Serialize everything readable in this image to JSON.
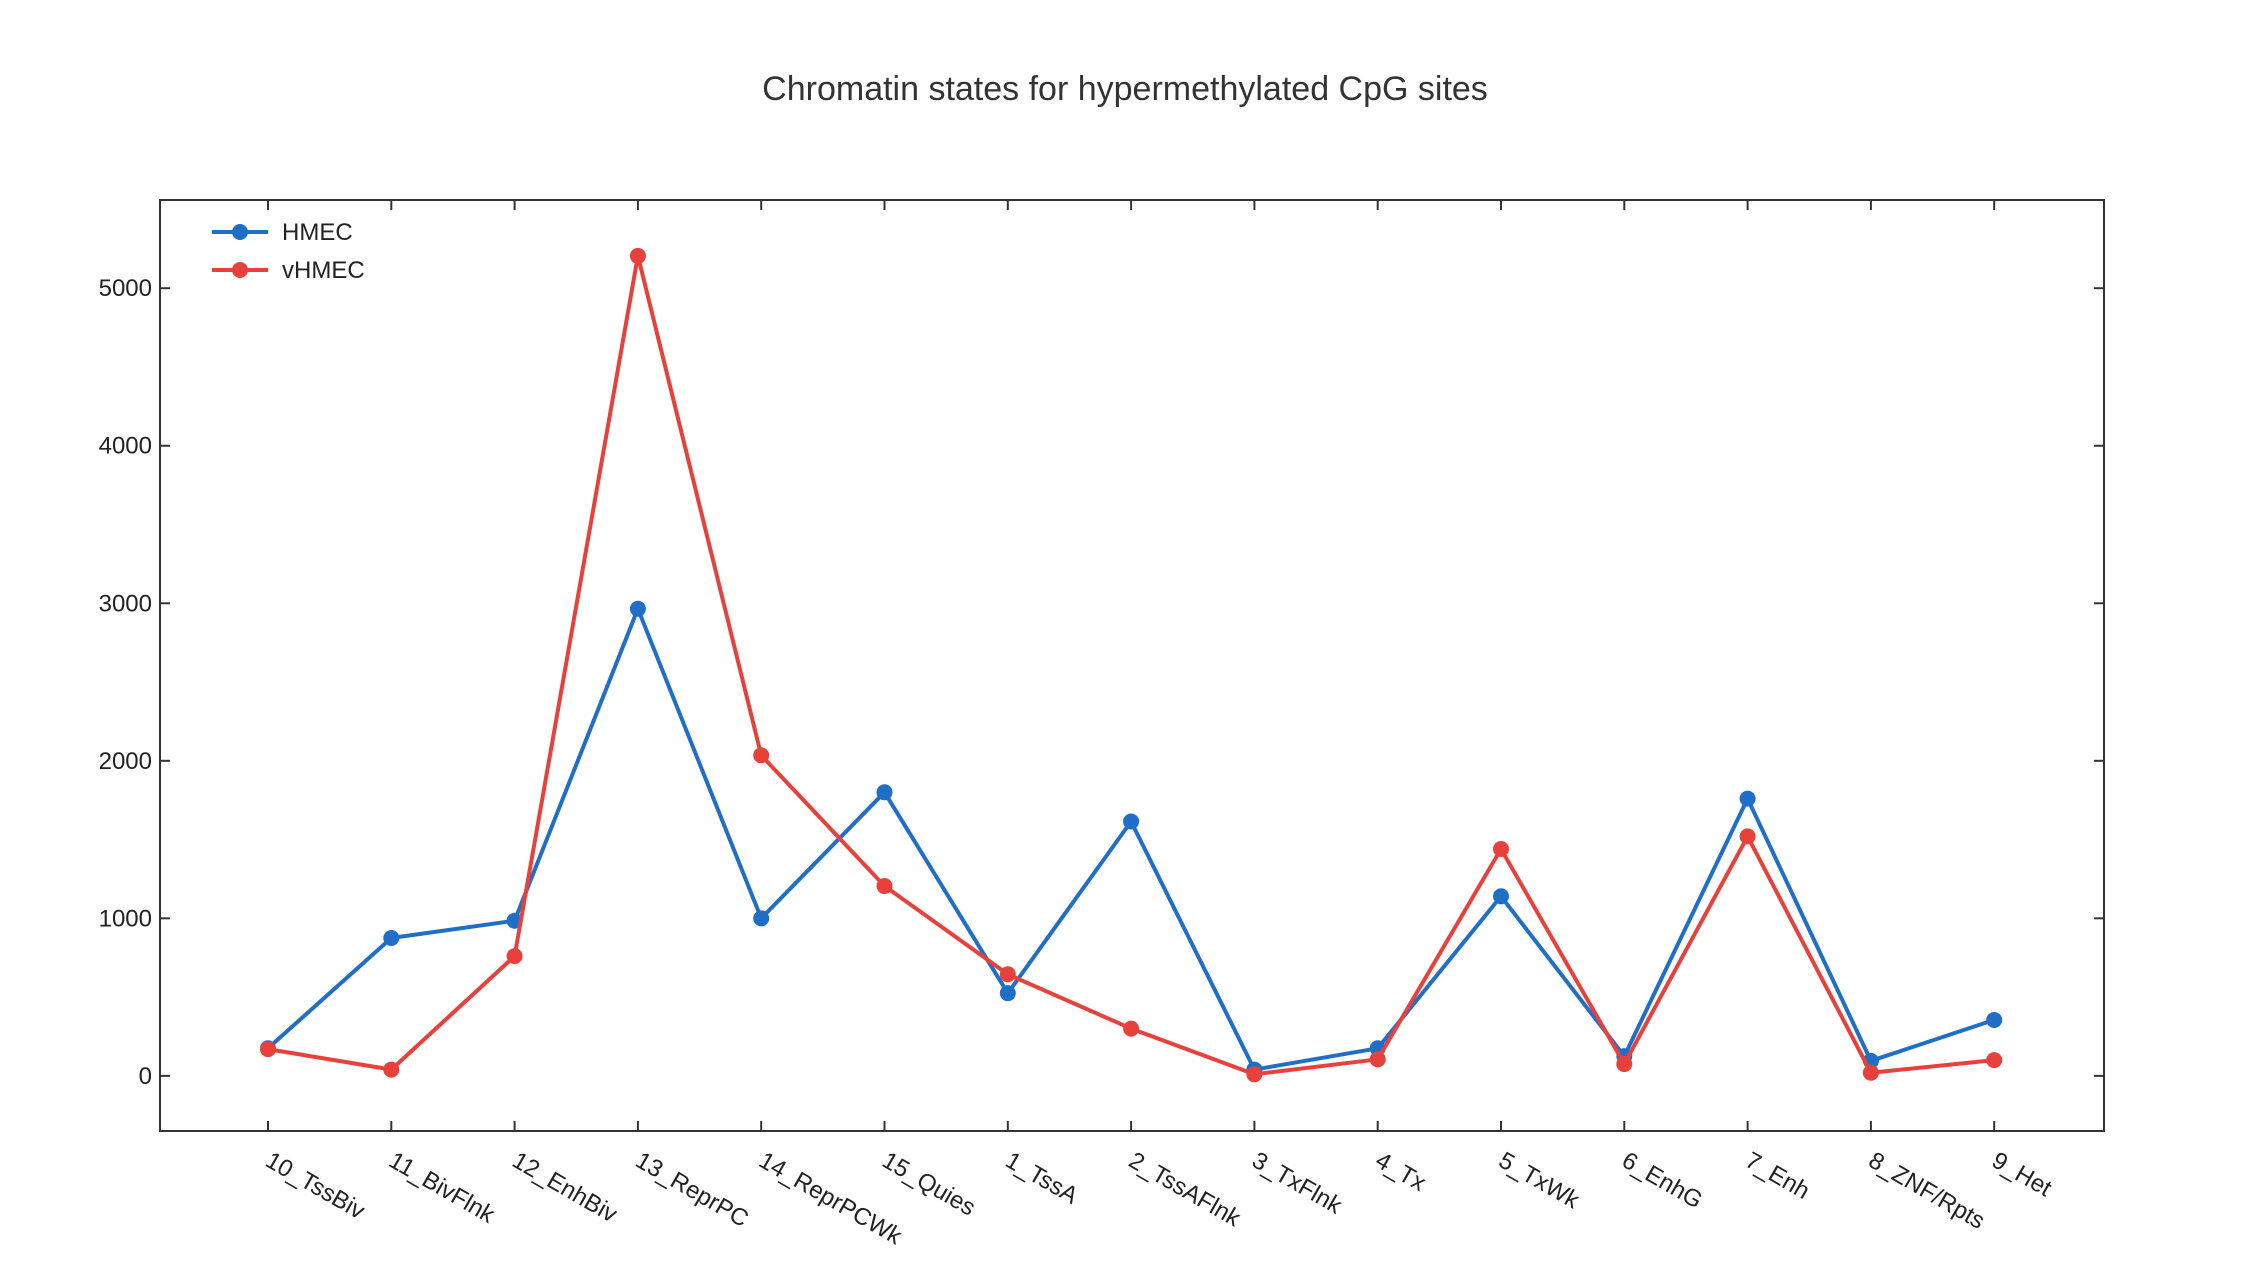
{
  "chart_data": {
    "type": "line",
    "title": "Chromatin states for hypermethylated CpG sites",
    "xlabel": "",
    "ylabel": "",
    "categories": [
      "10_TssBiv",
      "11_BivFlnk",
      "12_EnhBiv",
      "13_ReprPC",
      "14_ReprPCWk",
      "15_Quies",
      "1_TssA",
      "2_TssAFlnk",
      "3_TxFlnk",
      "4_Tx",
      "5_TxWk",
      "6_EnhG",
      "7_Enh",
      "8_ZNF/Rpts",
      "9_Het"
    ],
    "ylim": [
      -350,
      5560
    ],
    "yticks": [
      0,
      1000,
      2000,
      3000,
      4000,
      5000
    ],
    "grid": false,
    "legend": "top-left",
    "series": [
      {
        "name": "HMEC",
        "color": "#1f6fc9",
        "values": [
          175,
          875,
          985,
          2965,
          1000,
          1800,
          525,
          1615,
          40,
          175,
          1140,
          125,
          1760,
          95,
          355
        ]
      },
      {
        "name": "vHMEC",
        "color": "#e8413c",
        "values": [
          170,
          40,
          760,
          5205,
          2035,
          1205,
          645,
          300,
          10,
          105,
          1440,
          75,
          1520,
          20,
          100
        ]
      }
    ]
  }
}
